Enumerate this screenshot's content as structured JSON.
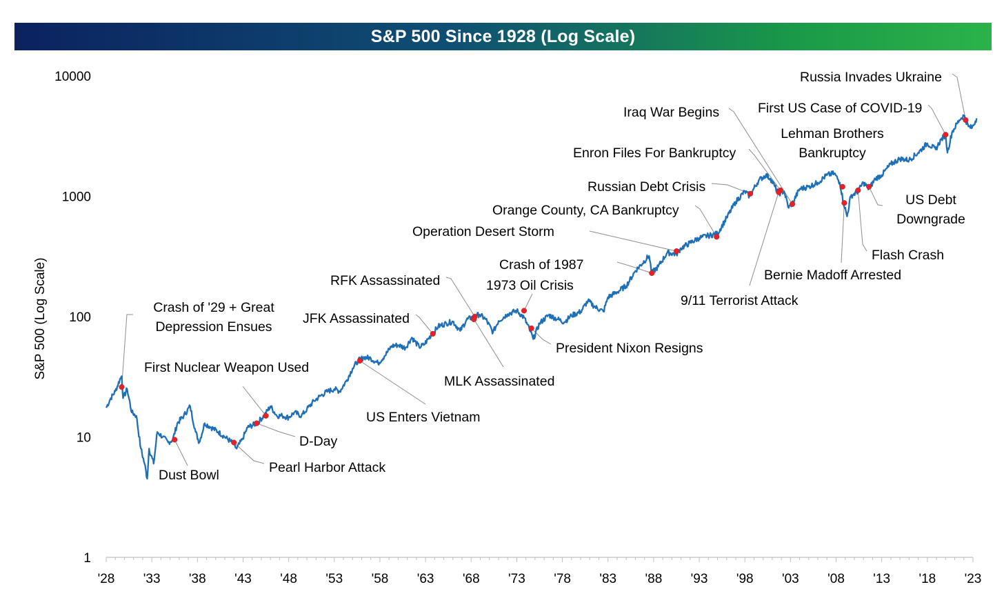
{
  "chart_data": {
    "type": "line",
    "title": "S&P 500 Since 1928 (Log Scale)",
    "ylabel": "S&P 500 (Log Scale)",
    "xlabel": "",
    "y_scale": "log",
    "ylim": [
      1,
      10000
    ],
    "xlim": [
      1928,
      2023
    ],
    "grid": false,
    "y_ticks": [
      "10000",
      "1000",
      "100",
      "10",
      "1"
    ],
    "x_ticks": [
      "'28",
      "'33",
      "'38",
      "'43",
      "'48",
      "'53",
      "'58",
      "'63",
      "'68",
      "'73",
      "'78",
      "'83",
      "'88",
      "'93",
      "'98",
      "'03",
      "'08",
      "'13",
      "'18",
      "'23"
    ],
    "series": [
      {
        "points": [
          [
            1928.0,
            17.5
          ],
          [
            1928.5,
            21
          ],
          [
            1929.0,
            24
          ],
          [
            1929.5,
            30
          ],
          [
            1929.7,
            32
          ],
          [
            1929.85,
            21
          ],
          [
            1930.3,
            25
          ],
          [
            1930.8,
            16
          ],
          [
            1931.3,
            15
          ],
          [
            1931.8,
            8
          ],
          [
            1932.2,
            6
          ],
          [
            1932.5,
            4.5
          ],
          [
            1932.7,
            8
          ],
          [
            1933.2,
            6
          ],
          [
            1933.6,
            11
          ],
          [
            1934.2,
            10
          ],
          [
            1934.8,
            9
          ],
          [
            1935.3,
            9.5
          ],
          [
            1935.8,
            13
          ],
          [
            1936.5,
            15
          ],
          [
            1937.2,
            18
          ],
          [
            1937.8,
            11
          ],
          [
            1938.2,
            9
          ],
          [
            1938.8,
            13
          ],
          [
            1939.5,
            12
          ],
          [
            1940.3,
            11
          ],
          [
            1941.0,
            10
          ],
          [
            1941.8,
            9
          ],
          [
            1942.3,
            8
          ],
          [
            1942.9,
            9.5
          ],
          [
            1943.5,
            12
          ],
          [
            1944.5,
            13
          ],
          [
            1945.3,
            15
          ],
          [
            1946.0,
            18
          ],
          [
            1946.7,
            15
          ],
          [
            1947.3,
            15
          ],
          [
            1948.0,
            14.5
          ],
          [
            1948.6,
            16
          ],
          [
            1949.4,
            15
          ],
          [
            1950.0,
            17
          ],
          [
            1950.8,
            20
          ],
          [
            1951.5,
            22
          ],
          [
            1952.3,
            24
          ],
          [
            1953.0,
            25
          ],
          [
            1953.6,
            24
          ],
          [
            1954.3,
            29
          ],
          [
            1955.0,
            37
          ],
          [
            1955.6,
            43
          ],
          [
            1956.3,
            46
          ],
          [
            1957.0,
            45
          ],
          [
            1957.8,
            41
          ],
          [
            1958.5,
            47
          ],
          [
            1959.3,
            57
          ],
          [
            1960.0,
            58
          ],
          [
            1960.8,
            55
          ],
          [
            1961.5,
            67
          ],
          [
            1962.3,
            56
          ],
          [
            1962.8,
            58
          ],
          [
            1963.6,
            70
          ],
          [
            1964.4,
            83
          ],
          [
            1965.3,
            88
          ],
          [
            1966.0,
            91
          ],
          [
            1966.8,
            76
          ],
          [
            1967.5,
            94
          ],
          [
            1968.3,
            100
          ],
          [
            1968.9,
            104
          ],
          [
            1969.6,
            95
          ],
          [
            1970.4,
            74
          ],
          [
            1971.0,
            92
          ],
          [
            1972.0,
            105
          ],
          [
            1973.0,
            112
          ],
          [
            1973.8,
            98
          ],
          [
            1974.5,
            75
          ],
          [
            1974.8,
            65
          ],
          [
            1975.5,
            88
          ],
          [
            1976.5,
            103
          ],
          [
            1977.5,
            95
          ],
          [
            1978.2,
            90
          ],
          [
            1979.0,
            102
          ],
          [
            1980.0,
            110
          ],
          [
            1980.8,
            135
          ],
          [
            1981.6,
            120
          ],
          [
            1982.5,
            110
          ],
          [
            1983.0,
            145
          ],
          [
            1984.0,
            160
          ],
          [
            1985.0,
            180
          ],
          [
            1986.0,
            240
          ],
          [
            1987.5,
            320
          ],
          [
            1987.8,
            230
          ],
          [
            1988.5,
            260
          ],
          [
            1989.5,
            340
          ],
          [
            1990.5,
            330
          ],
          [
            1991.0,
            370
          ],
          [
            1992.0,
            410
          ],
          [
            1993.0,
            450
          ],
          [
            1994.0,
            470
          ],
          [
            1995.0,
            490
          ],
          [
            1996.0,
            660
          ],
          [
            1997.0,
            900
          ],
          [
            1998.0,
            1100
          ],
          [
            1998.5,
            1000
          ],
          [
            1999.5,
            1350
          ],
          [
            2000.3,
            1500
          ],
          [
            2000.8,
            1400
          ],
          [
            2001.3,
            1200
          ],
          [
            2001.7,
            1050
          ],
          [
            2002.3,
            1100
          ],
          [
            2002.8,
            800
          ],
          [
            2003.3,
            900
          ],
          [
            2004.0,
            1150
          ],
          [
            2005.0,
            1200
          ],
          [
            2006.0,
            1300
          ],
          [
            2007.0,
            1500
          ],
          [
            2007.8,
            1550
          ],
          [
            2008.4,
            1300
          ],
          [
            2008.8,
            900
          ],
          [
            2009.2,
            680
          ],
          [
            2009.6,
            1000
          ],
          [
            2010.4,
            1100
          ],
          [
            2011.0,
            1300
          ],
          [
            2011.6,
            1150
          ],
          [
            2012.3,
            1400
          ],
          [
            2013.0,
            1500
          ],
          [
            2014.0,
            1850
          ],
          [
            2015.0,
            2050
          ],
          [
            2016.0,
            2000
          ],
          [
            2017.0,
            2300
          ],
          [
            2018.0,
            2750
          ],
          [
            2018.9,
            2450
          ],
          [
            2019.5,
            2950
          ],
          [
            2020.0,
            3250
          ],
          [
            2020.2,
            2300
          ],
          [
            2020.7,
            3400
          ],
          [
            2021.5,
            4300
          ],
          [
            2022.0,
            4700
          ],
          [
            2022.5,
            3800
          ],
          [
            2022.9,
            3700
          ],
          [
            2023.4,
            4450
          ]
        ]
      }
    ],
    "events": [
      {
        "label": "Crash of '29 + Great Depression Ensues",
        "x": 1929.7,
        "y": 26
      },
      {
        "label": "Dust Bowl",
        "x": 1935.5,
        "y": 9.5
      },
      {
        "label": "First Nuclear Weapon Used",
        "x": 1945.5,
        "y": 15
      },
      {
        "label": "Pearl Harbor Attack",
        "x": 1942.0,
        "y": 9
      },
      {
        "label": "D-Day",
        "x": 1944.5,
        "y": 13
      },
      {
        "label": "US Enters Vietnam",
        "x": 1955.8,
        "y": 43
      },
      {
        "label": "JFK Assassinated",
        "x": 1963.8,
        "y": 72
      },
      {
        "label": "RFK Assassinated",
        "x": 1968.4,
        "y": 100
      },
      {
        "label": "MLK Assassinated",
        "x": 1968.3,
        "y": 95
      },
      {
        "label": "1973 Oil Crisis",
        "x": 1973.8,
        "y": 112
      },
      {
        "label": "President Nixon Resigns",
        "x": 1974.6,
        "y": 80
      },
      {
        "label": "Crash of 1987",
        "x": 1987.8,
        "y": 230
      },
      {
        "label": "Operation Desert Storm",
        "x": 1990.5,
        "y": 350
      },
      {
        "label": "Orange County, CA Bankruptcy",
        "x": 1994.9,
        "y": 460
      },
      {
        "label": "Russian Debt Crisis",
        "x": 1998.6,
        "y": 1050
      },
      {
        "label": "Enron Files For Bankruptcy",
        "x": 2001.9,
        "y": 1120
      },
      {
        "label": "Iraq War Begins",
        "x": 2003.2,
        "y": 860
      },
      {
        "label": "9/11 Terrorist Attack",
        "x": 2001.7,
        "y": 1080
      },
      {
        "label": "Bernie Madoff Arrested",
        "x": 2008.9,
        "y": 880
      },
      {
        "label": "Lehman Brothers Bankruptcy",
        "x": 2008.7,
        "y": 1200
      },
      {
        "label": "Flash Crash",
        "x": 2010.4,
        "y": 1120
      },
      {
        "label": "US Debt Downgrade",
        "x": 2011.6,
        "y": 1200
      },
      {
        "label": "First US Case of COVID-19",
        "x": 2020.0,
        "y": 3250
      },
      {
        "label": "Russia Invades Ukraine",
        "x": 2022.2,
        "y": 4300
      }
    ]
  }
}
